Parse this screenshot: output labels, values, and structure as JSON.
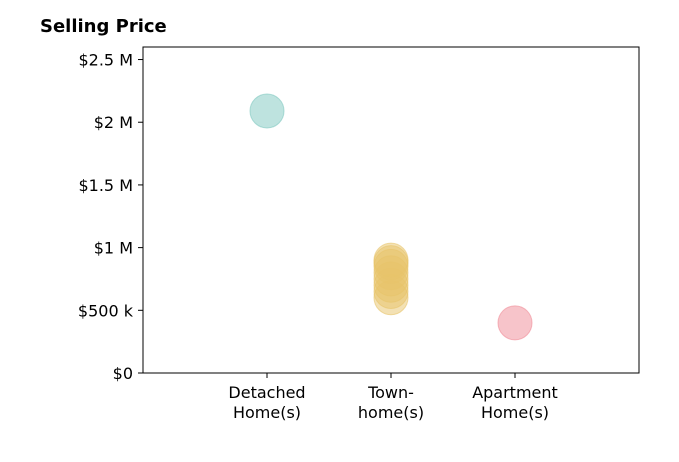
{
  "chart_data": {
    "type": "scatter",
    "title": "Selling Price",
    "xlabel": "",
    "ylabel": "",
    "categories": [
      [
        "Detached",
        "Home(s)"
      ],
      [
        "Town-",
        "home(s)"
      ],
      [
        "Apartment",
        "Home(s)"
      ]
    ],
    "y_ticks": [
      {
        "value": 0,
        "label": "$0"
      },
      {
        "value": 500000,
        "label": "$500 k"
      },
      {
        "value": 1000000,
        "label": "$1 M"
      },
      {
        "value": 1500000,
        "label": "$1.5 M"
      },
      {
        "value": 2000000,
        "label": "$2 M"
      },
      {
        "value": 2500000,
        "label": "$2.5 M"
      }
    ],
    "xlim": [
      -1,
      3
    ],
    "ylim": [
      0,
      2600000
    ],
    "grid": false,
    "series": [
      {
        "category_index": 0,
        "color": "#7ec8c0",
        "values": [
          2090000
        ]
      },
      {
        "category_index": 1,
        "color": "#e8c46a",
        "values": [
          600000,
          650000,
          700000,
          750000,
          800000,
          850000,
          880000,
          900000
        ]
      },
      {
        "category_index": 2,
        "color": "#f08a96",
        "values": [
          400000
        ]
      }
    ]
  }
}
